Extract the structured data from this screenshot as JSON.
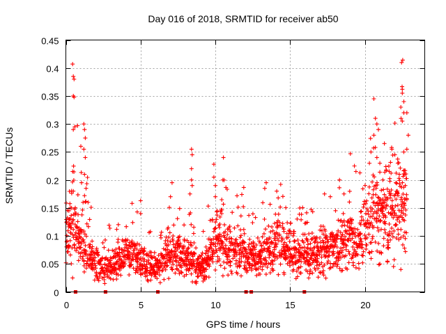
{
  "chart_data": {
    "type": "scatter",
    "title": "Day 016 of 2018, SRMTID for receiver ab50",
    "xlabel": "GPS time / hours",
    "ylabel": "SRMTID / TECUs",
    "xlim": [
      0,
      24
    ],
    "ylim": [
      0,
      0.45
    ],
    "xticks": [
      0,
      5,
      10,
      15,
      20
    ],
    "xtick_labels": [
      "0",
      "5",
      "10",
      "15",
      "20"
    ],
    "yticks": [
      0,
      0.05,
      0.1,
      0.15,
      0.2,
      0.25,
      0.3,
      0.35,
      0.4,
      0.45
    ],
    "ytick_labels": [
      "0",
      "0.05",
      "0.1",
      "0.15",
      "0.2",
      "0.25",
      "0.3",
      "0.35",
      "0.4",
      "0.45"
    ],
    "grid": true,
    "marker": "+",
    "color": "#ff0000",
    "series": [
      {
        "name": "SRMTID",
        "trend_profile": [
          [
            0.0,
            0.11
          ],
          [
            0.5,
            0.12
          ],
          [
            1.0,
            0.09
          ],
          [
            1.5,
            0.07
          ],
          [
            2.0,
            0.05
          ],
          [
            2.5,
            0.045
          ],
          [
            3.0,
            0.045
          ],
          [
            3.5,
            0.055
          ],
          [
            4.0,
            0.065
          ],
          [
            4.5,
            0.065
          ],
          [
            5.0,
            0.055
          ],
          [
            5.5,
            0.045
          ],
          [
            6.0,
            0.045
          ],
          [
            6.5,
            0.055
          ],
          [
            7.0,
            0.065
          ],
          [
            7.5,
            0.07
          ],
          [
            8.0,
            0.06
          ],
          [
            8.5,
            0.055
          ],
          [
            9.0,
            0.045
          ],
          [
            9.5,
            0.05
          ],
          [
            10.0,
            0.1
          ],
          [
            10.5,
            0.09
          ],
          [
            11.0,
            0.075
          ],
          [
            11.5,
            0.07
          ],
          [
            12.0,
            0.065
          ],
          [
            12.5,
            0.06
          ],
          [
            13.0,
            0.065
          ],
          [
            13.5,
            0.075
          ],
          [
            14.0,
            0.08
          ],
          [
            14.5,
            0.08
          ],
          [
            15.0,
            0.075
          ],
          [
            15.5,
            0.07
          ],
          [
            16.0,
            0.065
          ],
          [
            16.5,
            0.065
          ],
          [
            17.0,
            0.07
          ],
          [
            17.5,
            0.075
          ],
          [
            18.0,
            0.085
          ],
          [
            18.5,
            0.09
          ],
          [
            19.0,
            0.095
          ],
          [
            19.5,
            0.1
          ],
          [
            20.0,
            0.11
          ],
          [
            20.5,
            0.13
          ],
          [
            21.0,
            0.14
          ],
          [
            21.5,
            0.14
          ],
          [
            22.0,
            0.15
          ],
          [
            22.5,
            0.16
          ],
          [
            22.8,
            0.16
          ]
        ],
        "notable_points": [
          {
            "x": 0.45,
            "y": 0.407
          },
          {
            "x": 0.5,
            "y": 0.385
          },
          {
            "x": 0.55,
            "y": 0.38
          },
          {
            "x": 0.5,
            "y": 0.35
          },
          {
            "x": 0.55,
            "y": 0.348
          },
          {
            "x": 0.5,
            "y": 0.29
          },
          {
            "x": 0.6,
            "y": 0.295
          },
          {
            "x": 0.45,
            "y": 0.215
          },
          {
            "x": 0.3,
            "y": 0.15
          },
          {
            "x": 0.2,
            "y": 0.145
          },
          {
            "x": 0.5,
            "y": 0.18
          },
          {
            "x": 0.45,
            "y": 0.025
          },
          {
            "x": 1.0,
            "y": 0.26
          },
          {
            "x": 1.05,
            "y": 0.195
          },
          {
            "x": 1.2,
            "y": 0.3
          },
          {
            "x": 1.25,
            "y": 0.29
          },
          {
            "x": 1.3,
            "y": 0.275
          },
          {
            "x": 1.2,
            "y": 0.255
          },
          {
            "x": 1.3,
            "y": 0.24
          },
          {
            "x": 1.25,
            "y": 0.21
          },
          {
            "x": 1.35,
            "y": 0.185
          },
          {
            "x": 1.15,
            "y": 0.16
          },
          {
            "x": 2.2,
            "y": 0.02
          },
          {
            "x": 2.6,
            "y": 0.015
          },
          {
            "x": 5.0,
            "y": 0.163
          },
          {
            "x": 5.0,
            "y": 0.14
          },
          {
            "x": 7.1,
            "y": 0.195
          },
          {
            "x": 7.0,
            "y": 0.17
          },
          {
            "x": 8.4,
            "y": 0.255
          },
          {
            "x": 8.45,
            "y": 0.245
          },
          {
            "x": 8.4,
            "y": 0.22
          },
          {
            "x": 8.4,
            "y": 0.2
          },
          {
            "x": 8.45,
            "y": 0.19
          },
          {
            "x": 8.3,
            "y": 0.175
          },
          {
            "x": 9.9,
            "y": 0.228
          },
          {
            "x": 9.9,
            "y": 0.205
          },
          {
            "x": 10.0,
            "y": 0.19
          },
          {
            "x": 10.5,
            "y": 0.2
          },
          {
            "x": 10.0,
            "y": 0.17
          },
          {
            "x": 13.4,
            "y": 0.195
          },
          {
            "x": 13.3,
            "y": 0.185
          },
          {
            "x": 14.2,
            "y": 0.168
          },
          {
            "x": 14.1,
            "y": 0.18
          },
          {
            "x": 18.3,
            "y": 0.2
          },
          {
            "x": 17.3,
            "y": 0.175
          },
          {
            "x": 18.6,
            "y": 0.175
          },
          {
            "x": 19.3,
            "y": 0.225
          },
          {
            "x": 19.4,
            "y": 0.215
          },
          {
            "x": 20.6,
            "y": 0.345
          },
          {
            "x": 20.7,
            "y": 0.31
          },
          {
            "x": 20.8,
            "y": 0.3
          },
          {
            "x": 20.9,
            "y": 0.29
          },
          {
            "x": 20.6,
            "y": 0.28
          },
          {
            "x": 20.4,
            "y": 0.25
          },
          {
            "x": 20.3,
            "y": 0.23
          },
          {
            "x": 20.8,
            "y": 0.24
          },
          {
            "x": 21.0,
            "y": 0.23
          },
          {
            "x": 21.3,
            "y": 0.265
          },
          {
            "x": 21.2,
            "y": 0.2
          },
          {
            "x": 21.8,
            "y": 0.255
          },
          {
            "x": 22.0,
            "y": 0.245
          },
          {
            "x": 22.2,
            "y": 0.23
          },
          {
            "x": 22.3,
            "y": 0.21
          },
          {
            "x": 22.5,
            "y": 0.362
          },
          {
            "x": 22.5,
            "y": 0.355
          },
          {
            "x": 22.6,
            "y": 0.34
          },
          {
            "x": 22.4,
            "y": 0.33
          },
          {
            "x": 22.6,
            "y": 0.32
          },
          {
            "x": 22.8,
            "y": 0.32
          },
          {
            "x": 22.5,
            "y": 0.305
          },
          {
            "x": 22.9,
            "y": 0.28
          },
          {
            "x": 22.6,
            "y": 0.25
          },
          {
            "x": 22.8,
            "y": 0.255
          },
          {
            "x": 22.7,
            "y": 0.19
          },
          {
            "x": 22.8,
            "y": 0.165
          },
          {
            "x": 22.4,
            "y": 0.04
          },
          {
            "x": 21.0,
            "y": 0.05
          },
          {
            "x": 21.5,
            "y": 0.055
          }
        ]
      }
    ],
    "gap_markers_x": [
      0.65,
      2.65,
      6.15,
      12.05,
      12.4,
      15.95
    ]
  }
}
